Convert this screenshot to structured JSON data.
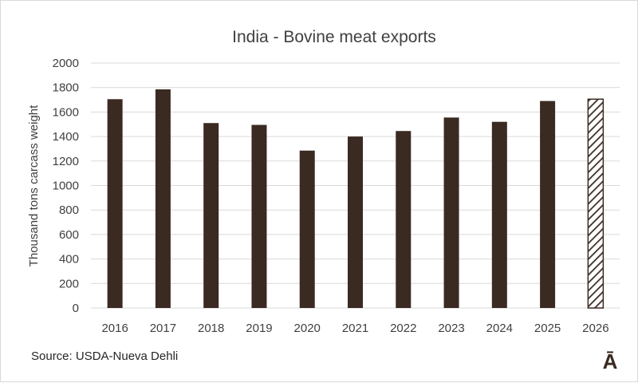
{
  "chart_data": {
    "type": "bar",
    "title": "India - Bovine meat exports",
    "xlabel": "",
    "ylabel": "Thousand tons carcass weight",
    "categories": [
      "2016",
      "2017",
      "2018",
      "2019",
      "2020",
      "2021",
      "2022",
      "2023",
      "2024",
      "2025",
      "2026"
    ],
    "values": [
      1705,
      1785,
      1510,
      1495,
      1285,
      1400,
      1445,
      1555,
      1520,
      1690,
      1705
    ],
    "forecast_categories": [
      "2026"
    ],
    "ylim": [
      0,
      2000
    ],
    "yticks": [
      0,
      200,
      400,
      600,
      800,
      1000,
      1200,
      1400,
      1600,
      1800,
      2000
    ],
    "grid": true,
    "legend": "none",
    "colors": {
      "bar": "#3a2a22",
      "forecast_hatch": "#3a2a22",
      "grid": "#d9d9d9",
      "text": "#404040"
    }
  },
  "source": "Source: USDA-Nueva Dehli",
  "logo": "Ā"
}
